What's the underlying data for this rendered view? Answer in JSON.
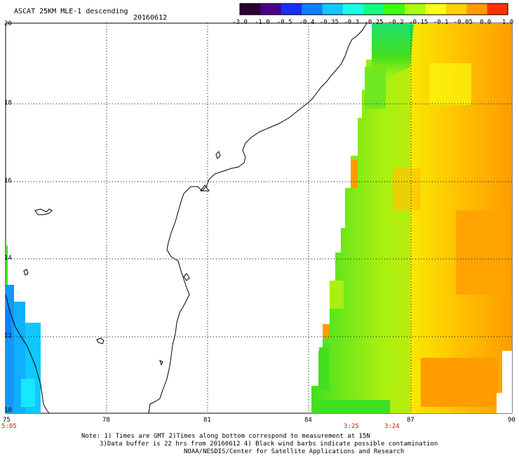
{
  "header": {
    "title": "ASCAT 25KM MLE-1 descending",
    "date": "20160612"
  },
  "colorbar": {
    "labels": [
      "-3.0",
      "-1.0",
      "-0.5",
      "-0.4",
      "-0.35",
      "-0.3",
      "-0.25",
      "-0.2",
      "-0.15",
      "-0.1",
      "-0.05",
      "0.0",
      "1.0"
    ],
    "colors": [
      "#2a0030",
      "#4a0088",
      "#1a2cff",
      "#0a80ff",
      "#10c8ff",
      "#18ffe8",
      "#10ff80",
      "#40ff10",
      "#a8ff10",
      "#f8ff10",
      "#ffd000",
      "#ff9c00",
      "#ff3000"
    ]
  },
  "axes": {
    "x_ticks": [
      "75",
      "78",
      "81",
      "84",
      "87",
      "90"
    ],
    "y_ticks": [
      "20",
      "18",
      "16",
      "14",
      "12",
      "10"
    ]
  },
  "time_marks": [
    "5:05",
    "3:25",
    "3:24"
  ],
  "notes": {
    "line1": "Note: 1) Times are GMT 2)Times along bottom correspond to measurement at 15N",
    "line2": "3)Data buffer is 22 hrs from 20160612 4) Black wind barbs indicate possible contamination",
    "line3": "NOAA/NESDIS/Center for Satellite Applications and Research"
  },
  "palette": {
    "swath_orange": "#ffb000",
    "swath_yellow": "#f8e800",
    "swath_green": "#40e020",
    "swath_cyan": "#10c8ff",
    "time_red": "#cc2200"
  }
}
